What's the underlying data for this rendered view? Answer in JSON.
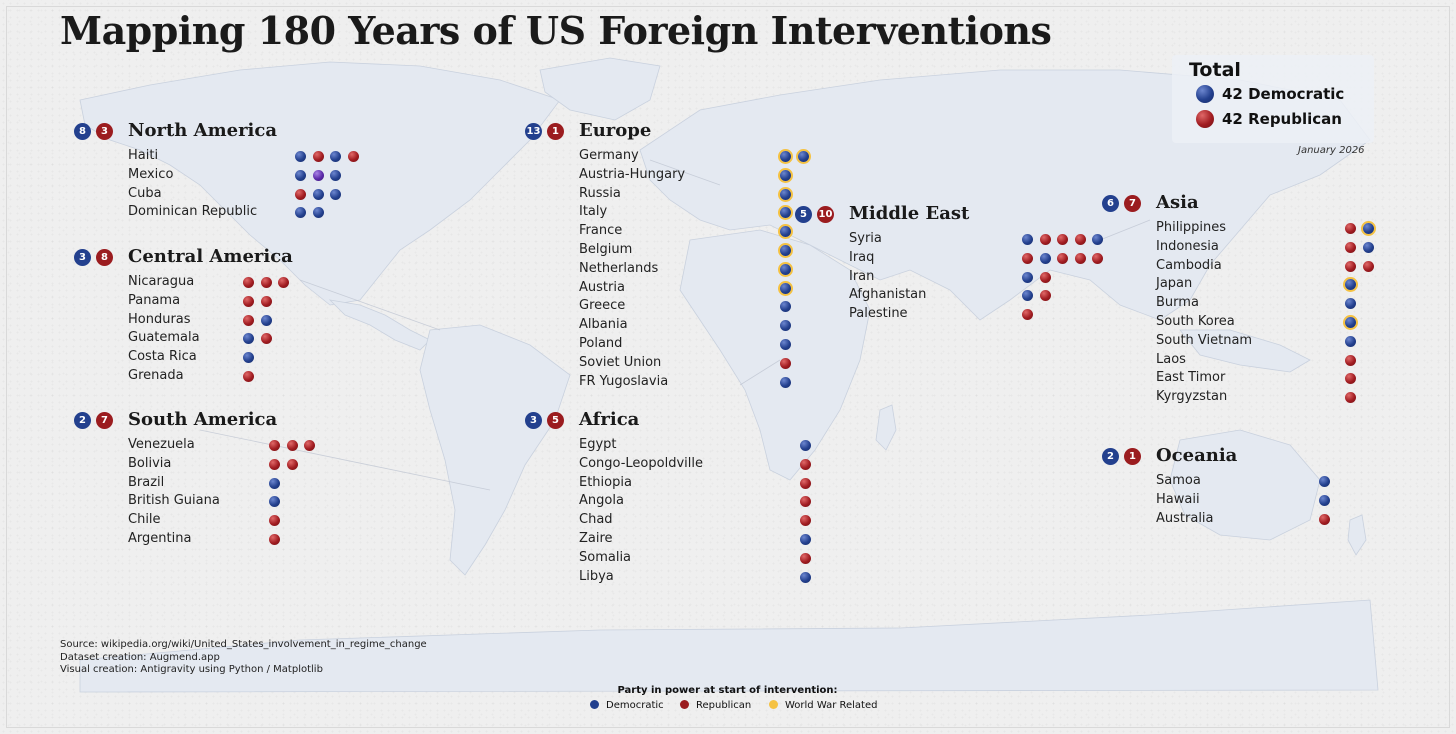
{
  "title": "Mapping 180 Years of US Foreign Interventions",
  "totals": {
    "title": "Total",
    "democratic_label": "42 Democratic",
    "republican_label": "42 Republican"
  },
  "date": "January 2026",
  "source_lines": [
    "Source: wikipedia.org/wiki/United_States_involvement_in_regime_change",
    "Dataset creation: Augmend.app",
    "Visual creation: Antigravity using Python / Matplotlib"
  ],
  "legend": {
    "title": "Party in power at start of intervention:",
    "democratic": "Democratic",
    "republican": "Republican",
    "war": "World War Related"
  },
  "colors": {
    "democratic": "#23408e",
    "republican": "#9b1c1f",
    "war": "#f5c242",
    "other": "#5b2aa8",
    "land": "#e4e9f1"
  },
  "regions": [
    {
      "name": "North America",
      "dem": "8",
      "rep": "3",
      "countries": [
        {
          "name": "Haiti",
          "dots": [
            "D",
            "R",
            "D",
            "R"
          ]
        },
        {
          "name": "Mexico",
          "dots": [
            "D",
            "X",
            "D"
          ]
        },
        {
          "name": "Cuba",
          "dots": [
            "R",
            "D",
            "D"
          ]
        },
        {
          "name": "Dominican Republic",
          "dots": [
            "D",
            "D"
          ]
        }
      ]
    },
    {
      "name": "Central America",
      "dem": "3",
      "rep": "8",
      "countries": [
        {
          "name": "Nicaragua",
          "dots": [
            "R",
            "R",
            "R"
          ]
        },
        {
          "name": "Panama",
          "dots": [
            "R",
            "R"
          ]
        },
        {
          "name": "Honduras",
          "dots": [
            "R",
            "D"
          ]
        },
        {
          "name": "Guatemala",
          "dots": [
            "D",
            "R"
          ]
        },
        {
          "name": "Costa Rica",
          "dots": [
            "D"
          ]
        },
        {
          "name": "Grenada",
          "dots": [
            "R"
          ]
        }
      ]
    },
    {
      "name": "South America",
      "dem": "2",
      "rep": "7",
      "countries": [
        {
          "name": "Venezuela",
          "dots": [
            "R",
            "R",
            "R"
          ]
        },
        {
          "name": "Bolivia",
          "dots": [
            "R",
            "R"
          ]
        },
        {
          "name": "Brazil",
          "dots": [
            "D"
          ]
        },
        {
          "name": "British Guiana",
          "dots": [
            "D"
          ]
        },
        {
          "name": "Chile",
          "dots": [
            "R"
          ]
        },
        {
          "name": "Argentina",
          "dots": [
            "R"
          ]
        }
      ]
    },
    {
      "name": "Europe",
      "dem": "13",
      "rep": "1",
      "countries": [
        {
          "name": "Germany",
          "dots": [
            "DW",
            "DW"
          ]
        },
        {
          "name": "Austria-Hungary",
          "dots": [
            "DW"
          ]
        },
        {
          "name": "Russia",
          "dots": [
            "DW"
          ]
        },
        {
          "name": "Italy",
          "dots": [
            "DW"
          ]
        },
        {
          "name": "France",
          "dots": [
            "DW"
          ]
        },
        {
          "name": "Belgium",
          "dots": [
            "DW"
          ]
        },
        {
          "name": "Netherlands",
          "dots": [
            "DW"
          ]
        },
        {
          "name": "Austria",
          "dots": [
            "DW"
          ]
        },
        {
          "name": "Greece",
          "dots": [
            "D"
          ]
        },
        {
          "name": "Albania",
          "dots": [
            "D"
          ]
        },
        {
          "name": "Poland",
          "dots": [
            "D"
          ]
        },
        {
          "name": "Soviet Union",
          "dots": [
            "R"
          ]
        },
        {
          "name": "FR Yugoslavia",
          "dots": [
            "D"
          ]
        }
      ]
    },
    {
      "name": "Africa",
      "dem": "3",
      "rep": "5",
      "countries": [
        {
          "name": "Egypt",
          "dots": [
            "D"
          ]
        },
        {
          "name": "Congo-Leopoldville",
          "dots": [
            "R"
          ]
        },
        {
          "name": "Ethiopia",
          "dots": [
            "R"
          ]
        },
        {
          "name": "Angola",
          "dots": [
            "R"
          ]
        },
        {
          "name": "Chad",
          "dots": [
            "R"
          ]
        },
        {
          "name": "Zaire",
          "dots": [
            "D"
          ]
        },
        {
          "name": "Somalia",
          "dots": [
            "R"
          ]
        },
        {
          "name": "Libya",
          "dots": [
            "D"
          ]
        }
      ]
    },
    {
      "name": "Middle East",
      "dem": "5",
      "rep": "10",
      "countries": [
        {
          "name": "Syria",
          "dots": [
            "D",
            "R",
            "R",
            "R",
            "D"
          ]
        },
        {
          "name": "Iraq",
          "dots": [
            "R",
            "D",
            "R",
            "R",
            "R"
          ]
        },
        {
          "name": "Iran",
          "dots": [
            "D",
            "R"
          ]
        },
        {
          "name": "Afghanistan",
          "dots": [
            "D",
            "R"
          ]
        },
        {
          "name": "Palestine",
          "dots": [
            "R"
          ]
        }
      ]
    },
    {
      "name": "Asia",
      "dem": "6",
      "rep": "7",
      "countries": [
        {
          "name": "Philippines",
          "dots": [
            "R",
            "DW"
          ]
        },
        {
          "name": "Indonesia",
          "dots": [
            "R",
            "D"
          ]
        },
        {
          "name": "Cambodia",
          "dots": [
            "R",
            "R"
          ]
        },
        {
          "name": "Japan",
          "dots": [
            "DW"
          ]
        },
        {
          "name": "Burma",
          "dots": [
            "D"
          ]
        },
        {
          "name": "South Korea",
          "dots": [
            "DW"
          ]
        },
        {
          "name": "South Vietnam",
          "dots": [
            "D"
          ]
        },
        {
          "name": "Laos",
          "dots": [
            "R"
          ]
        },
        {
          "name": "East Timor",
          "dots": [
            "R"
          ]
        },
        {
          "name": "Kyrgyzstan",
          "dots": [
            "R"
          ]
        }
      ]
    },
    {
      "name": "Oceania",
      "dem": "2",
      "rep": "1",
      "countries": [
        {
          "name": "Samoa",
          "dots": [
            "D"
          ]
        },
        {
          "name": "Hawaii",
          "dots": [
            "D"
          ]
        },
        {
          "name": "Australia",
          "dots": [
            "R"
          ]
        }
      ]
    }
  ]
}
